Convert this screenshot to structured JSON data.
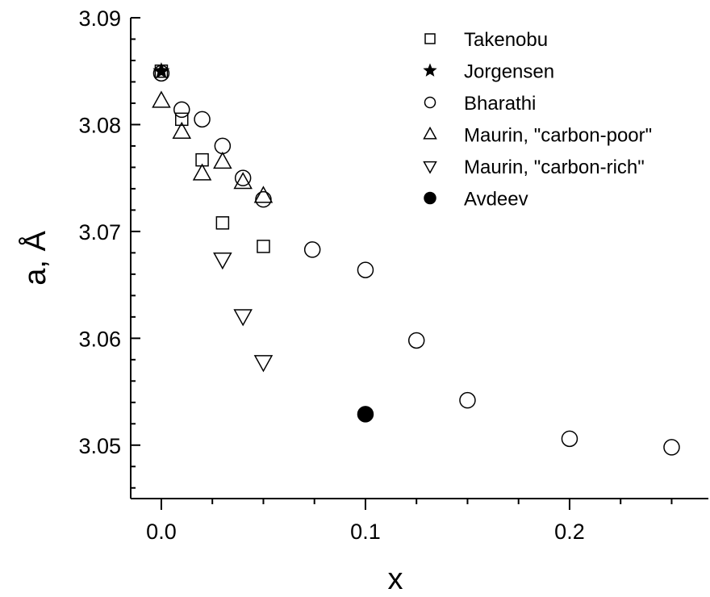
{
  "chart_data": {
    "type": "scatter",
    "xlabel": "x",
    "ylabel": "a, Å",
    "xlim": [
      -0.015,
      0.268
    ],
    "ylim": [
      3.045,
      3.09
    ],
    "x_ticks": [
      0.0,
      0.1,
      0.2
    ],
    "x_tick_labels": [
      "0.0",
      "0.1",
      "0.2"
    ],
    "y_ticks": [
      3.05,
      3.06,
      3.07,
      3.08,
      3.09
    ],
    "y_tick_labels": [
      "3.05",
      "3.06",
      "3.07",
      "3.08",
      "3.09"
    ],
    "grid": false,
    "legend_position": "top-right",
    "series": [
      {
        "name": "Takenobu",
        "marker": "square",
        "x": [
          0.0,
          0.01,
          0.02,
          0.03,
          0.05
        ],
        "y": [
          3.085,
          3.0805,
          3.0767,
          3.0708,
          3.0686
        ]
      },
      {
        "name": "Jorgensen",
        "marker": "star",
        "x": [
          0.0
        ],
        "y": [
          3.085
        ]
      },
      {
        "name": "Bharathi",
        "marker": "circle",
        "x": [
          0.0,
          0.01,
          0.02,
          0.03,
          0.04,
          0.05,
          0.074,
          0.1,
          0.125,
          0.15,
          0.2,
          0.25
        ],
        "y": [
          3.0848,
          3.0814,
          3.0805,
          3.078,
          3.075,
          3.073,
          3.0683,
          3.0664,
          3.0598,
          3.0542,
          3.0506,
          3.0498
        ]
      },
      {
        "name": "Maurin, \"carbon-poor\"",
        "marker": "triangle-up",
        "x": [
          0.0,
          0.01,
          0.02,
          0.03,
          0.04,
          0.05
        ],
        "y": [
          3.0822,
          3.0793,
          3.0754,
          3.0765,
          3.0746,
          3.0733
        ]
      },
      {
        "name": "Maurin, \"carbon-rich\"",
        "marker": "triangle-down",
        "x": [
          0.03,
          0.04,
          0.05
        ],
        "y": [
          3.0674,
          3.0621,
          3.0578
        ]
      },
      {
        "name": "Avdeev",
        "marker": "filled-circle",
        "x": [
          0.1
        ],
        "y": [
          3.0529
        ]
      }
    ]
  }
}
